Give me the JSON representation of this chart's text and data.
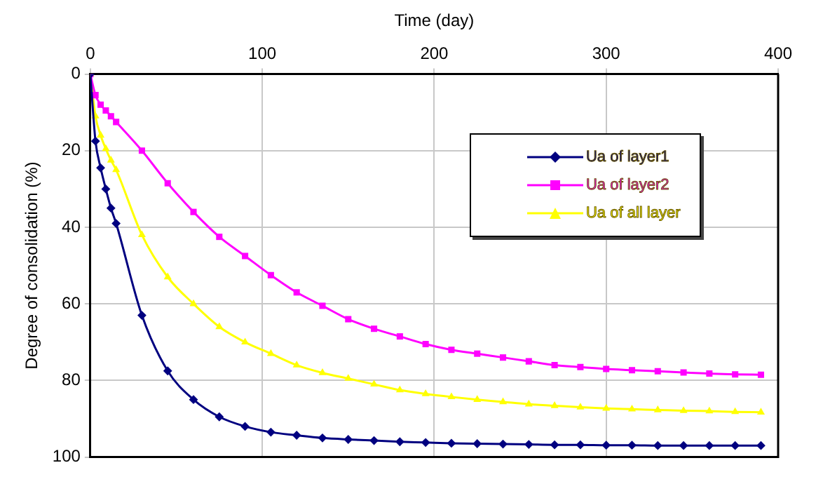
{
  "chart_data": {
    "type": "line",
    "xlabel": "Time (day)",
    "ylabel": "Degree of consolidation (%)",
    "x": [
      0,
      3,
      6,
      9,
      12,
      15,
      30,
      45,
      60,
      75,
      90,
      105,
      120,
      135,
      150,
      165,
      180,
      195,
      210,
      225,
      240,
      255,
      270,
      285,
      300,
      315,
      330,
      345,
      360,
      375,
      390
    ],
    "series": [
      {
        "name": "Ua of layer1",
        "color": "#000080",
        "marker": "diamond",
        "values": [
          0,
          17.5,
          24.5,
          30,
          35,
          39,
          63,
          77.5,
          85,
          89.5,
          92,
          93.5,
          94.3,
          95,
          95.4,
          95.7,
          96,
          96.2,
          96.4,
          96.5,
          96.6,
          96.7,
          96.8,
          96.8,
          96.9,
          96.9,
          97,
          97,
          97,
          97,
          97
        ]
      },
      {
        "name": "Ua of layer2",
        "color": "#ff00ff",
        "marker": "square",
        "values": [
          0,
          5.5,
          8,
          9.5,
          11,
          12.5,
          20,
          28.5,
          36,
          42.5,
          47.5,
          52.5,
          57,
          60.5,
          64,
          66.5,
          68.5,
          70.5,
          72,
          73,
          74,
          75,
          76,
          76.5,
          77,
          77.3,
          77.6,
          77.9,
          78.2,
          78.4,
          78.5
        ]
      },
      {
        "name": "Ua of all layer",
        "color": "#ffff00",
        "marker": "triangle",
        "values": [
          0,
          11,
          16,
          19.5,
          22.5,
          25,
          42,
          53,
          60,
          66,
          70,
          73,
          76,
          78,
          79.5,
          81,
          82.5,
          83.5,
          84.3,
          85,
          85.6,
          86.2,
          86.6,
          87,
          87.3,
          87.5,
          87.7,
          87.9,
          88,
          88.2,
          88.3
        ]
      }
    ],
    "xlim": [
      0,
      400
    ],
    "xticks": [
      0,
      100,
      200,
      300,
      400
    ],
    "ylim": [
      100,
      0
    ],
    "yticks": [
      0,
      20,
      40,
      60,
      80,
      100
    ],
    "grid": true,
    "legend": "top right",
    "line_style": "solid"
  }
}
